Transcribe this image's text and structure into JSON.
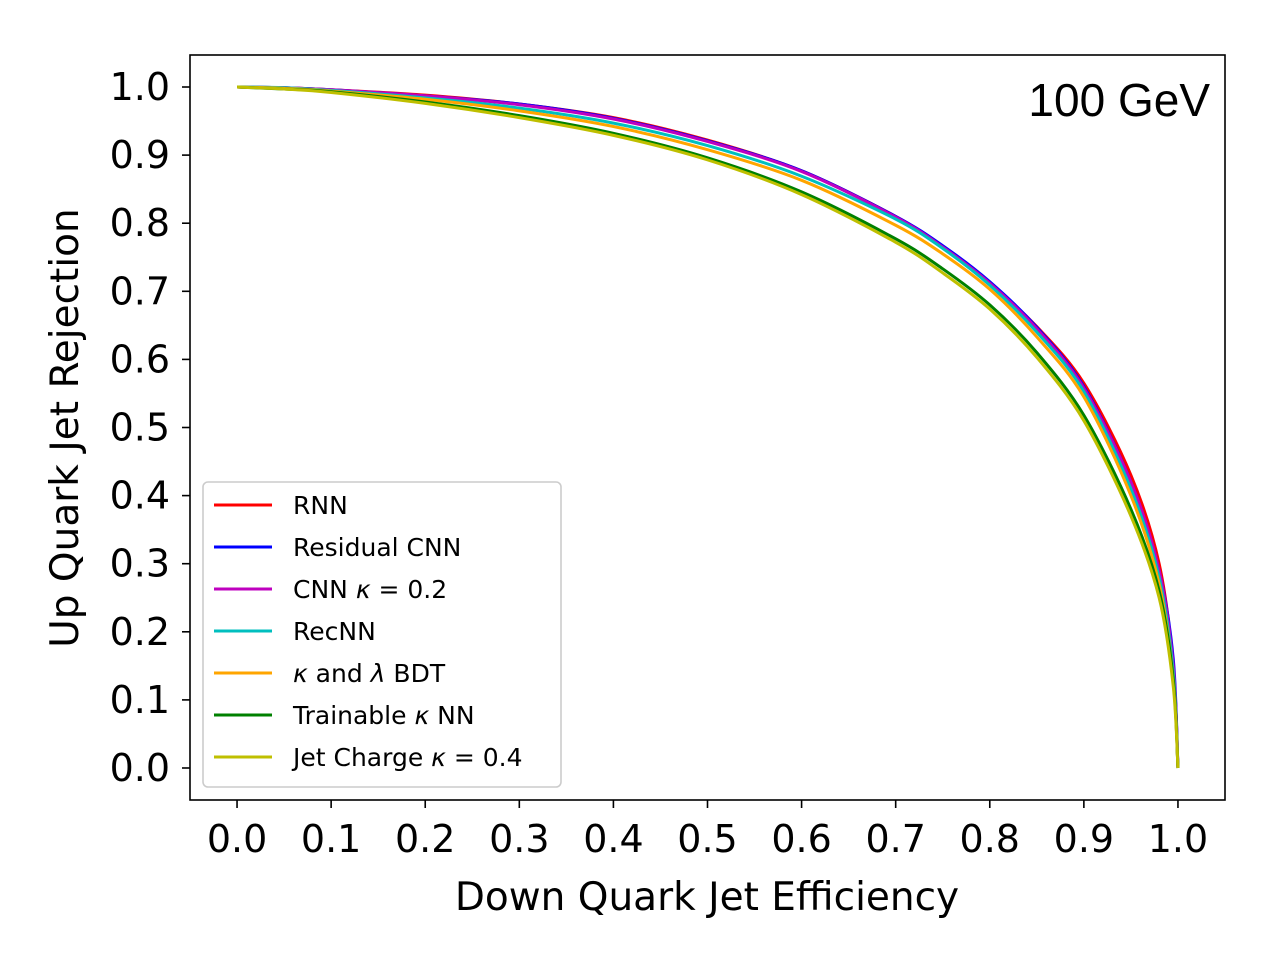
{
  "chart_data": {
    "type": "line",
    "title": "",
    "annotation": "100 GeV",
    "xlabel": "Down Quark Jet Efficiency",
    "ylabel": "Up Quark Jet Rejection",
    "xlim": [
      -0.05,
      1.05
    ],
    "ylim": [
      -0.047,
      1.047
    ],
    "xticks": [
      0.0,
      0.1,
      0.2,
      0.3,
      0.4,
      0.5,
      0.6,
      0.7,
      0.8,
      0.9,
      1.0
    ],
    "yticks": [
      0.0,
      0.1,
      0.2,
      0.3,
      0.4,
      0.5,
      0.6,
      0.7,
      0.8,
      0.9,
      1.0
    ],
    "xtick_labels": [
      "0.0",
      "0.1",
      "0.2",
      "0.3",
      "0.4",
      "0.5",
      "0.6",
      "0.7",
      "0.8",
      "0.9",
      "1.0"
    ],
    "ytick_labels": [
      "0.0",
      "0.1",
      "0.2",
      "0.3",
      "0.4",
      "0.5",
      "0.6",
      "0.7",
      "0.8",
      "0.9",
      "1.0"
    ],
    "grid": false,
    "legend_position": "lower-left",
    "x": [
      0.0,
      0.05,
      0.1,
      0.2,
      0.3,
      0.4,
      0.5,
      0.6,
      0.7,
      0.75,
      0.8,
      0.85,
      0.9,
      0.95,
      0.98,
      0.995,
      1.0
    ],
    "series": [
      {
        "name": "RNN",
        "label_parts": [
          [
            "RNN",
            "n"
          ]
        ],
        "color": "#ff0000",
        "values": [
          1.0,
          0.999,
          0.996,
          0.988,
          0.975,
          0.955,
          0.922,
          0.877,
          0.81,
          0.765,
          0.712,
          0.648,
          0.565,
          0.43,
          0.3,
          0.15,
          0.0
        ]
      },
      {
        "name": "Residual CNN",
        "label_parts": [
          [
            "Residual CNN",
            "n"
          ]
        ],
        "color": "#0000ff",
        "values": [
          1.0,
          0.999,
          0.996,
          0.987,
          0.975,
          0.954,
          0.921,
          0.877,
          0.81,
          0.767,
          0.714,
          0.647,
          0.56,
          0.42,
          0.29,
          0.16,
          0.0
        ]
      },
      {
        "name": "CNN κ = 0.2",
        "label_parts": [
          [
            "CNN ",
            "n"
          ],
          [
            "κ",
            "i"
          ],
          [
            " = 0.2",
            "n"
          ]
        ],
        "color": "#bf00bf",
        "values": [
          1.0,
          0.999,
          0.996,
          0.987,
          0.974,
          0.953,
          0.92,
          0.876,
          0.809,
          0.765,
          0.712,
          0.645,
          0.558,
          0.42,
          0.29,
          0.15,
          0.0
        ]
      },
      {
        "name": "RecNN",
        "label_parts": [
          [
            "RecNN",
            "n"
          ]
        ],
        "color": "#00bfbf",
        "values": [
          1.0,
          0.999,
          0.995,
          0.984,
          0.969,
          0.947,
          0.914,
          0.869,
          0.806,
          0.763,
          0.709,
          0.64,
          0.553,
          0.41,
          0.28,
          0.14,
          0.0
        ]
      },
      {
        "name": "κ and λ BDT",
        "label_parts": [
          [
            "κ",
            "i"
          ],
          [
            " and ",
            "n"
          ],
          [
            "λ",
            "i"
          ],
          [
            " BDT",
            "n"
          ]
        ],
        "color": "#ffa500",
        "values": [
          1.0,
          0.998,
          0.994,
          0.982,
          0.965,
          0.942,
          0.908,
          0.863,
          0.797,
          0.755,
          0.703,
          0.633,
          0.545,
          0.4,
          0.27,
          0.13,
          0.0
        ]
      },
      {
        "name": "Trainable κ NN",
        "label_parts": [
          [
            "Trainable ",
            "n"
          ],
          [
            "κ",
            "i"
          ],
          [
            " NN",
            "n"
          ]
        ],
        "color": "#008000",
        "values": [
          1.0,
          0.997,
          0.993,
          0.978,
          0.958,
          0.932,
          0.896,
          0.846,
          0.777,
          0.733,
          0.68,
          0.61,
          0.518,
          0.38,
          0.26,
          0.13,
          0.0
        ]
      },
      {
        "name": "Jet Charge κ = 0.4",
        "label_parts": [
          [
            "Jet Charge ",
            "n"
          ],
          [
            "κ",
            "i"
          ],
          [
            " = 0.4",
            "n"
          ]
        ],
        "color": "#bfbf00",
        "values": [
          1.0,
          0.997,
          0.992,
          0.976,
          0.955,
          0.929,
          0.893,
          0.842,
          0.772,
          0.727,
          0.674,
          0.603,
          0.51,
          0.37,
          0.25,
          0.12,
          0.0
        ]
      }
    ]
  }
}
